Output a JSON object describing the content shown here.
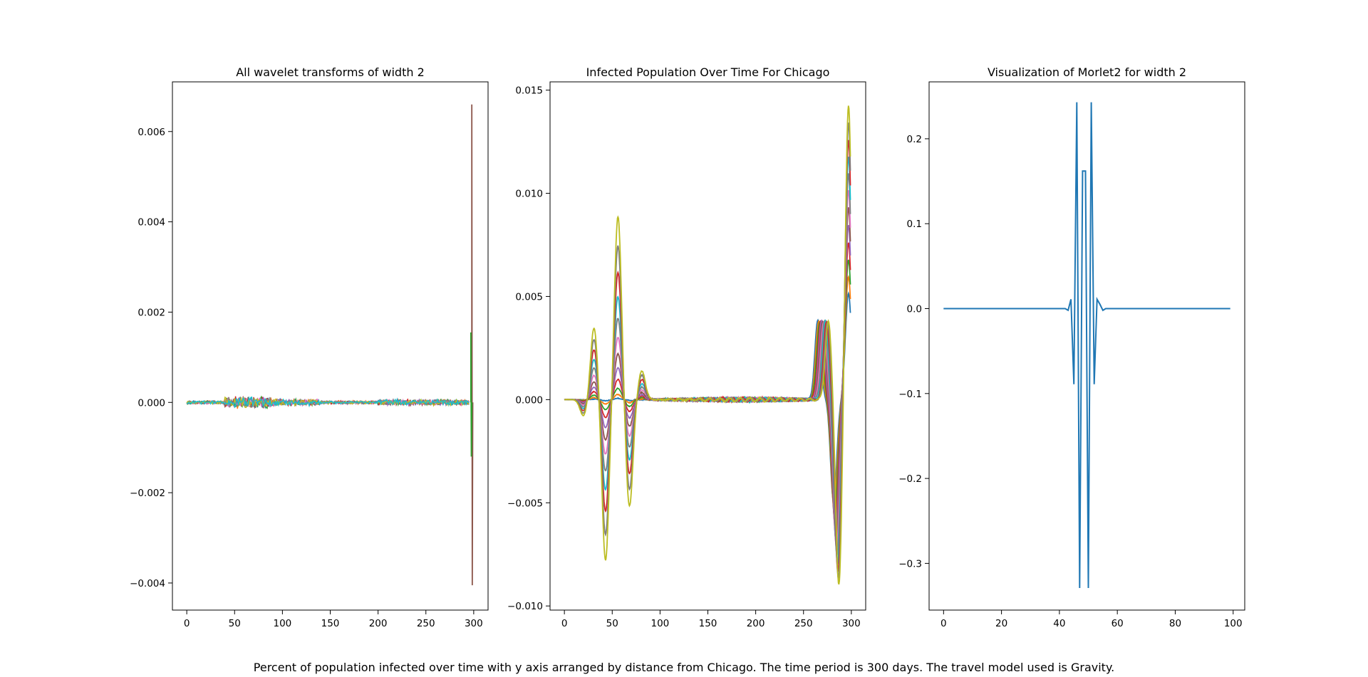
{
  "figure": {
    "caption": "Percent of population infected over time with y axis arranged by distance from Chicago. The time period is 300 days. The travel model used is Gravity."
  },
  "palette": [
    "#1f77b4",
    "#ff7f0e",
    "#2ca02c",
    "#d62728",
    "#9467bd",
    "#8c564b",
    "#e377c2",
    "#7f7f7f",
    "#bcbd22",
    "#17becf"
  ],
  "chart_data": [
    {
      "type": "line",
      "title": "All wavelet transforms of width 2",
      "xlabel": "",
      "ylabel": "",
      "xlim": [
        -15,
        315
      ],
      "ylim": [
        -0.0046,
        0.0071
      ],
      "xticks": [
        0,
        50,
        100,
        150,
        200,
        250,
        300
      ],
      "xtick_labels": [
        "0",
        "50",
        "100",
        "150",
        "200",
        "250",
        "300"
      ],
      "yticks": [
        -0.004,
        -0.002,
        0.0,
        0.002,
        0.004,
        0.006
      ],
      "ytick_labels": [
        "−0.004",
        "−0.002",
        "0.000",
        "0.002",
        "0.004",
        "0.006"
      ],
      "grid": false,
      "series_count": 10,
      "x_range": [
        0,
        299
      ],
      "noise": {
        "0-40": 4e-05,
        "40-90": 0.00014,
        "90-140": 8e-05,
        "140-200": 4e-05,
        "200-295": 7e-05
      },
      "spikes": [
        {
          "x": 298,
          "min": -0.00405,
          "max": 0.0066
        },
        {
          "x": 297,
          "min": -0.0012,
          "max": 0.00155
        }
      ]
    },
    {
      "type": "line",
      "title": "Infected Population Over Time For Chicago",
      "xlabel": "",
      "ylabel": "",
      "xlim": [
        -15,
        315
      ],
      "ylim": [
        -0.0102,
        0.0154
      ],
      "xticks": [
        0,
        50,
        100,
        150,
        200,
        250,
        300
      ],
      "xtick_labels": [
        "0",
        "50",
        "100",
        "150",
        "200",
        "250",
        "300"
      ],
      "yticks": [
        -0.01,
        -0.005,
        0.0,
        0.005,
        0.01,
        0.015
      ],
      "ytick_labels": [
        "−0.010",
        "−0.005",
        "0.000",
        "0.005",
        "0.010",
        "0.015"
      ],
      "grid": false,
      "series_count": 12,
      "x_range": [
        0,
        299
      ],
      "outer_envelope": [
        {
          "x": 0,
          "y": 0.0
        },
        {
          "x": 20,
          "y": -0.0008
        },
        {
          "x": 31,
          "y": 0.0035
        },
        {
          "x": 43,
          "y": -0.0078
        },
        {
          "x": 56,
          "y": 0.0089
        },
        {
          "x": 68,
          "y": -0.0052
        },
        {
          "x": 81,
          "y": 0.0014
        },
        {
          "x": 276,
          "y": 0.0038
        },
        {
          "x": 287,
          "y": -0.0091
        },
        {
          "x": 297,
          "y": 0.0143
        }
      ]
    },
    {
      "type": "line",
      "title": "Visualization of Morlet2 for width 2",
      "xlabel": "",
      "ylabel": "",
      "xlim": [
        -5,
        104
      ],
      "ylim": [
        -0.355,
        0.267
      ],
      "xticks": [
        0,
        20,
        40,
        60,
        80,
        100
      ],
      "xtick_labels": [
        "0",
        "20",
        "40",
        "60",
        "80",
        "100"
      ],
      "yticks": [
        -0.3,
        -0.2,
        -0.1,
        0.0,
        0.1,
        0.2
      ],
      "ytick_labels": [
        "−0.3",
        "−0.2",
        "−0.1",
        "0.0",
        "0.1",
        "0.2"
      ],
      "grid": false,
      "series": [
        {
          "x": [
            0,
            42,
            43,
            44,
            45,
            46,
            47,
            48,
            49,
            50,
            51,
            52,
            53,
            54,
            55,
            56,
            57,
            99
          ],
          "y": [
            0.0,
            0.0,
            -0.002,
            0.011,
            -0.089,
            0.243,
            -0.329,
            0.162,
            0.162,
            -0.329,
            0.243,
            -0.089,
            0.011,
            0.005,
            -0.002,
            0.0,
            0.0,
            0.0
          ]
        }
      ]
    }
  ]
}
